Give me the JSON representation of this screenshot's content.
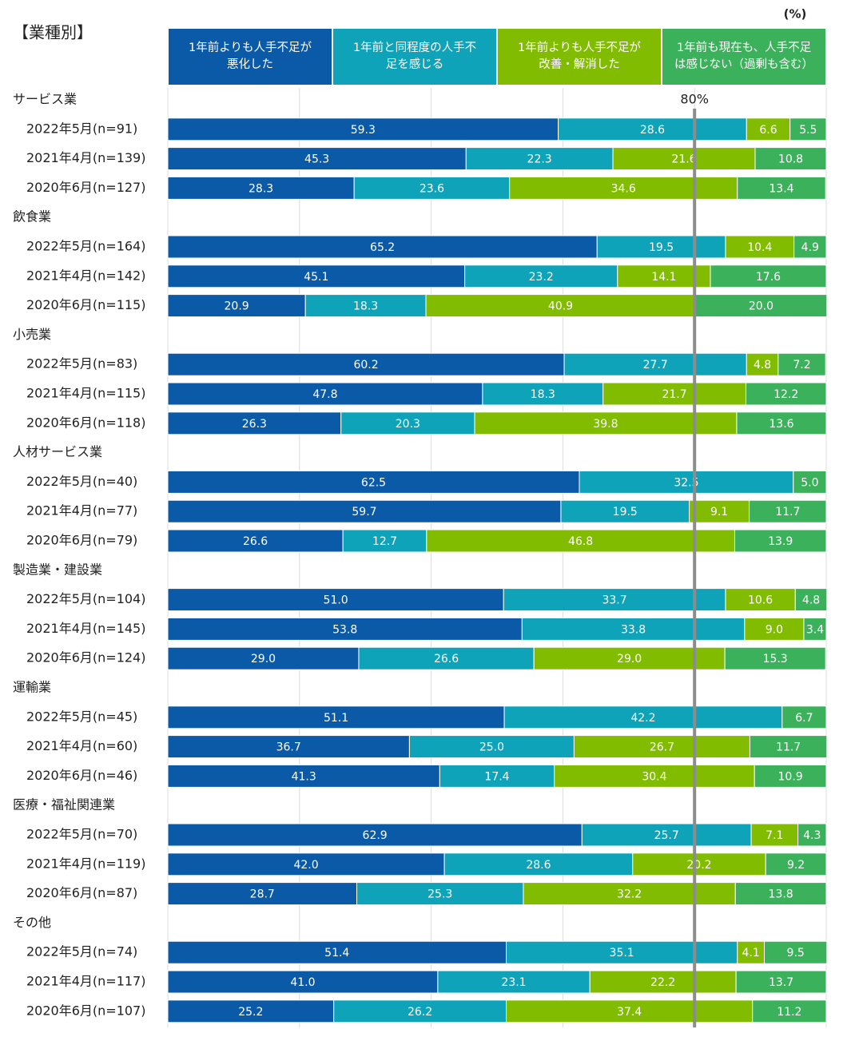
{
  "chart_data": {
    "type": "stacked_barh",
    "title": "【業種別】",
    "unit": "(%)",
    "xlim": [
      0,
      100
    ],
    "xticks": [
      0,
      20,
      40,
      60,
      80,
      100
    ],
    "grid": true,
    "reference_line": {
      "value": 80,
      "label": "80%",
      "color": "#8c8c8c"
    },
    "categories": [
      "サービス業",
      "2022年5月(n=91)",
      "2021年4月(n=139)",
      "2020年6月(n=127)",
      "飲食業",
      "2022年5月(n=164)",
      "2021年4月(n=142)",
      "2020年6月(n=115)",
      "小売業",
      "2022年5月(n=83)",
      "2021年4月(n=115)",
      "2020年6月(n=118)",
      "人材サービス業",
      "2022年5月(n=40)",
      "2021年4月(n=77)",
      "2020年6月(n=79)",
      "製造業・建設業",
      "2022年5月(n=104)",
      "2021年4月(n=145)",
      "2020年6月(n=124)",
      "運輸業",
      "2022年5月(n=45)",
      "2021年4月(n=60)",
      "2020年6月(n=46)",
      "医療・福祉関連業",
      "2022年5月(n=70)",
      "2021年4月(n=119)",
      "2020年6月(n=87)",
      "その他",
      "2022年5月(n=74)",
      "2021年4月(n=117)",
      "2020年6月(n=107)"
    ],
    "series": [
      {
        "name": "1年前よりも人手不足が\n悪化した",
        "color": "#0b5aa8",
        "values": [
          null,
          59.3,
          45.3,
          28.3,
          null,
          65.2,
          45.1,
          20.9,
          null,
          60.2,
          47.8,
          26.3,
          null,
          62.5,
          59.7,
          26.6,
          null,
          51.0,
          53.8,
          29.0,
          null,
          51.1,
          36.7,
          41.3,
          null,
          62.9,
          42.0,
          28.7,
          null,
          51.4,
          41.0,
          25.2
        ],
        "value_labels": [
          null,
          "59.3",
          "45.3",
          "28.3",
          null,
          "65.2",
          "45.1",
          "20.9",
          null,
          "60.2",
          "47.8",
          "26.3",
          null,
          "62.5",
          "59.7",
          "26.6",
          null,
          "51.0",
          "53.8",
          "29.0",
          null,
          "51.1",
          "36.7",
          "41.3",
          null,
          "62.9",
          "42.0",
          "28.7",
          null,
          "51.4",
          "41.0",
          "25.2"
        ]
      },
      {
        "name": "1年前と同程度の人手不\n足を感じる",
        "color": "#0ea3b9",
        "values": [
          null,
          28.6,
          22.3,
          23.6,
          null,
          19.5,
          23.2,
          18.3,
          null,
          27.7,
          18.3,
          20.3,
          null,
          32.5,
          19.5,
          12.7,
          null,
          33.7,
          33.8,
          26.6,
          null,
          42.2,
          25.0,
          17.4,
          null,
          25.7,
          28.6,
          25.3,
          null,
          35.1,
          23.1,
          26.2
        ],
        "value_labels": [
          null,
          "28.6",
          "22.3",
          "23.6",
          null,
          "19.5",
          "23.2",
          "18.3",
          null,
          "27.7",
          "18.3",
          "20.3",
          null,
          "32.5",
          "19.5",
          "12.7",
          null,
          "33.7",
          "33.8",
          "26.6",
          null,
          "42.2",
          "25.0",
          "17.4",
          null,
          "25.7",
          "28.6",
          "25.3",
          null,
          "35.1",
          "23.1",
          "26.2"
        ]
      },
      {
        "name": "1年前よりも人手不足が\n改善・解消した",
        "color": "#82bc00",
        "values": [
          null,
          6.6,
          21.6,
          34.6,
          null,
          10.4,
          14.1,
          40.9,
          null,
          4.8,
          21.7,
          39.8,
          null,
          null,
          9.1,
          46.8,
          null,
          10.6,
          9.0,
          29.0,
          null,
          null,
          26.7,
          30.4,
          null,
          7.1,
          20.2,
          32.2,
          null,
          4.1,
          22.2,
          37.4
        ],
        "value_labels": [
          null,
          "6.6",
          "21.6",
          "34.6",
          null,
          "10.4",
          "14.1",
          "40.9",
          null,
          "4.8",
          "21.7",
          "39.8",
          null,
          null,
          "9.1",
          "46.8",
          null,
          "10.6",
          "9.0",
          "29.0",
          null,
          null,
          "26.7",
          "30.4",
          null,
          "7.1",
          "20.2",
          "32.2",
          null,
          "4.1",
          "22.2",
          "37.4"
        ]
      },
      {
        "name": "1年前も現在も、人手不足\nは感じない（過剰も含む）",
        "color": "#3cb15b",
        "values": [
          null,
          5.5,
          10.8,
          13.4,
          null,
          4.9,
          17.6,
          20.0,
          null,
          7.2,
          12.2,
          13.6,
          null,
          5.0,
          11.7,
          13.9,
          null,
          4.8,
          3.4,
          15.3,
          null,
          6.7,
          11.7,
          10.9,
          null,
          4.3,
          9.2,
          13.8,
          null,
          9.5,
          13.7,
          11.2
        ],
        "value_labels": [
          null,
          "5.5",
          "10.8",
          "13.4",
          null,
          "4.9",
          "17.6",
          "20.0",
          null,
          "7.2",
          "12.2",
          "13.6",
          null,
          "5.0",
          "11.7",
          "13.9",
          null,
          "4.8",
          "3.4",
          "15.3",
          null,
          "6.7",
          "11.7",
          "10.9",
          null,
          "4.3",
          "9.2",
          "13.8",
          null,
          "9.5",
          "13.7",
          "11.2"
        ]
      }
    ]
  }
}
